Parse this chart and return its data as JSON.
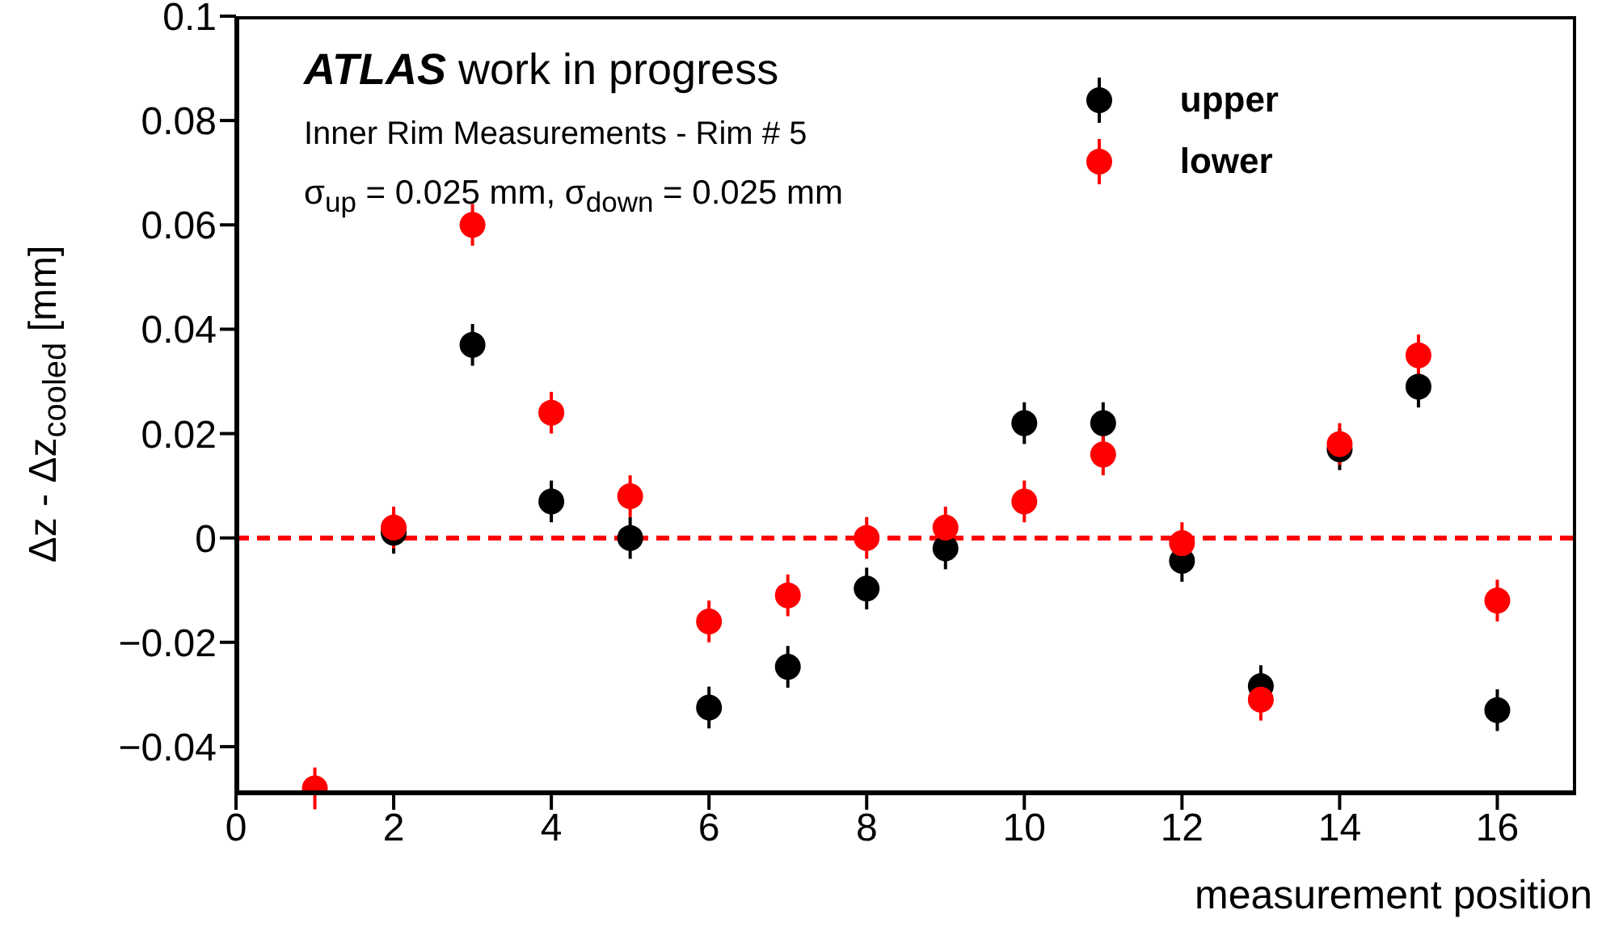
{
  "chart_data": {
    "type": "scatter",
    "xlabel": "measurement position",
    "ylabel": "Δz - Δz$_{cooled}$ [mm]",
    "annotations": [
      "ATLAS work in progress",
      "Inner Rim Measurements - Rim # 5",
      "σ$_{up}$ = 0.025 mm, σ$_{down}$ = 0.025 mm"
    ],
    "x": [
      1,
      2,
      3,
      4,
      5,
      6,
      7,
      8,
      9,
      10,
      11,
      12,
      13,
      14,
      15,
      16
    ],
    "series": [
      {
        "name": "upper",
        "color": "#000000",
        "values": [
          null,
          0.001,
          0.037,
          0.007,
          0.0,
          -0.0325,
          -0.0247,
          -0.0097,
          -0.002,
          0.022,
          0.022,
          -0.0044,
          -0.0284,
          0.017,
          0.029,
          -0.033
        ],
        "errors": [
          null,
          0.004,
          0.004,
          0.004,
          0.004,
          0.004,
          0.004,
          0.004,
          0.004,
          0.004,
          0.004,
          0.004,
          0.004,
          0.004,
          0.004,
          0.004
        ]
      },
      {
        "name": "lower",
        "color": "#ff0000",
        "values": [
          -0.048,
          0.002,
          0.06,
          0.024,
          0.008,
          -0.016,
          -0.011,
          0.0,
          0.002,
          0.007,
          0.016,
          -0.001,
          -0.031,
          0.018,
          0.035,
          -0.012
        ],
        "errors": [
          0.004,
          0.004,
          0.004,
          0.004,
          0.004,
          0.004,
          0.004,
          0.004,
          0.004,
          0.004,
          0.004,
          0.004,
          0.004,
          0.004,
          0.004,
          0.004
        ]
      }
    ],
    "xlim": [
      0,
      17
    ],
    "xticks": [
      0,
      2,
      4,
      6,
      8,
      10,
      12,
      14,
      16
    ],
    "ylim": [
      -0.049,
      0.1
    ],
    "yticks": [
      {
        "value": -0.04,
        "label": "−0.04"
      },
      {
        "value": -0.02,
        "label": "−0.02"
      },
      0,
      0.02,
      0.04,
      0.06,
      0.08,
      0.1
    ],
    "ref_lines": [
      {
        "axis": "y",
        "value": 0,
        "color": "#ff0000",
        "line_style": "dashed"
      }
    ],
    "legend": "top right",
    "marker": "circle",
    "grid": false
  }
}
